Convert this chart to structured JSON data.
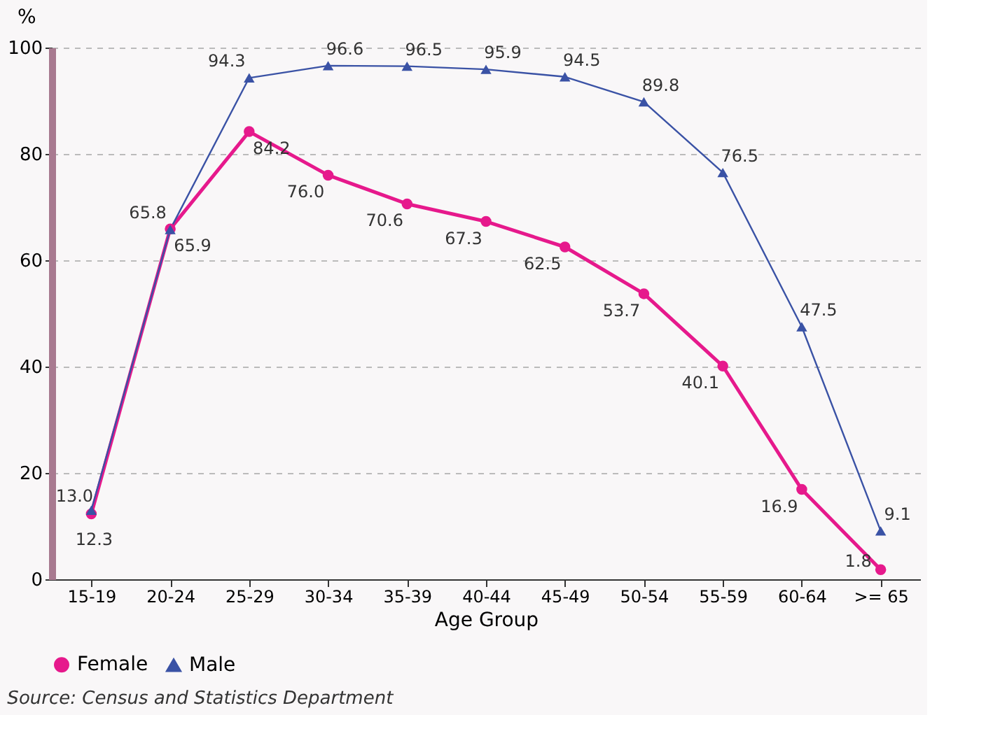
{
  "chart_data": {
    "type": "line",
    "xlabel": "Age Group",
    "ylabel": "%",
    "categories": [
      "15-19",
      "20-24",
      "25-29",
      "30-34",
      "35-39",
      "40-44",
      "45-49",
      "50-54",
      "55-59",
      "60-64",
      ">= 65"
    ],
    "series": [
      {
        "name": "Female",
        "color": "#e6198c",
        "marker": "circle",
        "values": [
          12.3,
          65.9,
          84.2,
          76.0,
          70.6,
          67.3,
          62.5,
          53.7,
          40.1,
          16.9,
          1.8
        ],
        "value_labels": [
          "12.3",
          "65.9",
          "84.2",
          "76.0",
          "70.6",
          "67.3",
          "62.5",
          "53.7",
          "40.1",
          "16.9",
          "1.8"
        ]
      },
      {
        "name": "Male",
        "color": "#3a52a5",
        "marker": "triangle",
        "values": [
          13.0,
          65.8,
          94.3,
          96.6,
          96.5,
          95.9,
          94.5,
          89.8,
          76.5,
          47.5,
          9.1
        ],
        "value_labels": [
          "13.0",
          "65.8",
          "94.3",
          "96.6",
          "96.5",
          "95.9",
          "94.5",
          "89.8",
          "76.5",
          "47.5",
          "9.1"
        ]
      }
    ],
    "ylim": [
      0,
      100
    ],
    "yticks": [
      0,
      20,
      40,
      60,
      80,
      100
    ],
    "grid": "y",
    "legend": "bottom left",
    "annotations": [
      "Source: Census and Statistics Department"
    ]
  }
}
